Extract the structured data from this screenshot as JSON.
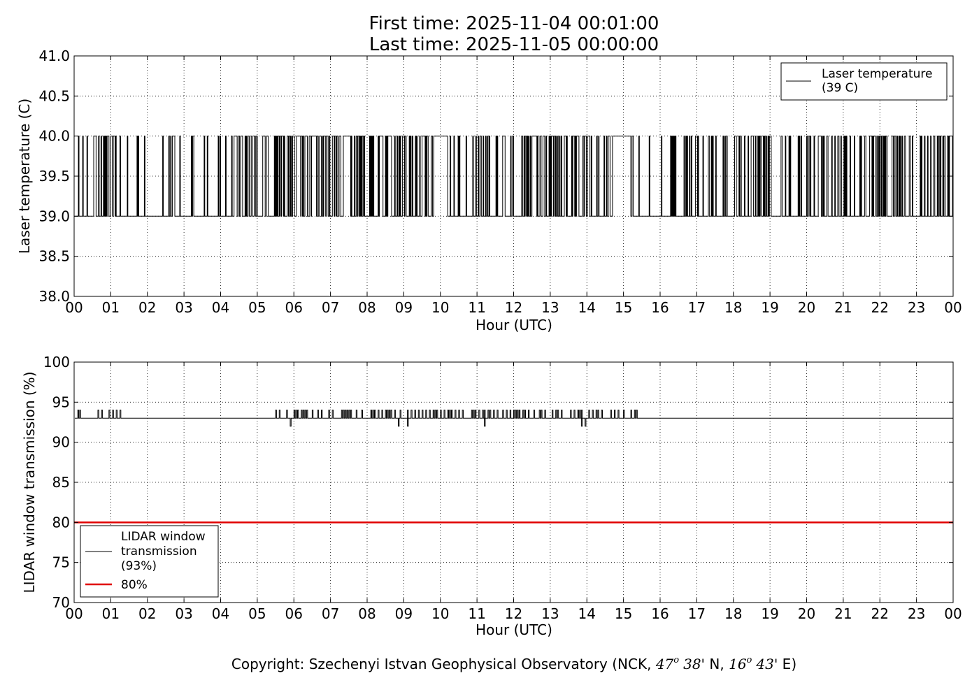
{
  "title": {
    "line1": "First time: 2025-11-04 00:01:00",
    "line2": "Last time: 2025-11-05 00:00:00"
  },
  "copyright": {
    "prefix": "Copyright: Szechenyi Istvan Geophysical Observatory (NCK, ",
    "lat_deg": "47",
    "deg_sym": "o",
    "lat_min": "38'",
    "lat_dir": " N, ",
    "lon_deg": "16",
    "lon_min": "43'",
    "lon_dir": " E)"
  },
  "chart_data": [
    {
      "type": "line",
      "ylabel": "Laser temperature (C)",
      "xlabel": "Hour (UTC)",
      "xlim": [
        0,
        24
      ],
      "ylim": [
        38.0,
        41.0
      ],
      "x_tick_labels": [
        "00",
        "01",
        "02",
        "03",
        "04",
        "05",
        "06",
        "07",
        "08",
        "09",
        "10",
        "11",
        "12",
        "13",
        "14",
        "15",
        "16",
        "17",
        "18",
        "19",
        "20",
        "21",
        "22",
        "23",
        "00"
      ],
      "y_ticks": [
        38.0,
        38.5,
        39.0,
        39.5,
        40.0,
        40.5,
        41.0
      ],
      "y_tick_labels": [
        "38.0",
        "38.5",
        "39.0",
        "39.5",
        "40.0",
        "40.5",
        "41.0"
      ],
      "grid": true,
      "legend": {
        "placement": "top-right",
        "lines": [
          "Laser temperature",
          "(39 C)"
        ]
      },
      "series": [
        {
          "name": "Laser temperature (39 C)",
          "color": "#000000",
          "baseline": 39.0,
          "spike_value": 40.0,
          "spike_density": [
            [
              0.0,
              0.5,
              0.35
            ],
            [
              0.5,
              1.3,
              0.75
            ],
            [
              1.3,
              2.0,
              0.25
            ],
            [
              2.0,
              2.3,
              0.0
            ],
            [
              2.3,
              3.6,
              0.35
            ],
            [
              3.6,
              4.3,
              0.25
            ],
            [
              4.3,
              5.5,
              0.8
            ],
            [
              5.5,
              7.4,
              0.95
            ],
            [
              7.4,
              7.7,
              0.5
            ],
            [
              7.7,
              10.0,
              0.7
            ],
            [
              10.0,
              12.0,
              0.5
            ],
            [
              12.0,
              14.1,
              0.7
            ],
            [
              14.1,
              15.3,
              0.45
            ],
            [
              15.3,
              16.2,
              0.05
            ],
            [
              16.2,
              19.0,
              0.55
            ],
            [
              19.0,
              24.0,
              0.45
            ]
          ],
          "plateaus": [
            [
              7.35,
              7.55
            ],
            [
              9.85,
              10.2
            ],
            [
              14.7,
              15.2
            ],
            [
              12.5,
              12.6
            ]
          ]
        }
      ]
    },
    {
      "type": "line",
      "ylabel": "LIDAR window transmission (%)",
      "xlabel": "Hour (UTC)",
      "xlim": [
        0,
        24
      ],
      "ylim": [
        70,
        100
      ],
      "x_tick_labels": [
        "00",
        "01",
        "02",
        "03",
        "04",
        "05",
        "06",
        "07",
        "08",
        "09",
        "10",
        "11",
        "12",
        "13",
        "14",
        "15",
        "16",
        "17",
        "18",
        "19",
        "20",
        "21",
        "22",
        "23",
        "00"
      ],
      "y_ticks": [
        70,
        75,
        80,
        85,
        90,
        95,
        100
      ],
      "y_tick_labels": [
        "70",
        "75",
        "80",
        "85",
        "90",
        "95",
        "100"
      ],
      "grid": true,
      "legend": {
        "placement": "lower-left",
        "lines": [
          "LIDAR window",
          "transmission",
          "(93%)"
        ],
        "threshold_label": "80%"
      },
      "series": [
        {
          "name": "LIDAR window transmission (93%)",
          "color": "#000000",
          "baseline": 93,
          "up_spikes": [
            0.1,
            0.15,
            0.65,
            0.75,
            0.95,
            1.05,
            1.15,
            1.25,
            5.5,
            5.6,
            5.8,
            6.0,
            6.05,
            6.1,
            6.2,
            6.25,
            6.3,
            6.35,
            6.5,
            6.65,
            6.75,
            6.95,
            7.05,
            7.3,
            7.35,
            7.4,
            7.45,
            7.5,
            7.55,
            7.7,
            7.85,
            8.1,
            8.15,
            8.2,
            8.3,
            8.4,
            8.5,
            8.55,
            8.6,
            8.65,
            8.75,
            8.9,
            9.1,
            9.2,
            9.3,
            9.4,
            9.5,
            9.6,
            9.7,
            9.8,
            9.85,
            9.9,
            10.0,
            10.1,
            10.2,
            10.25,
            10.3,
            10.4,
            10.5,
            10.6,
            10.85,
            10.9,
            10.95,
            11.05,
            11.15,
            11.2,
            11.3,
            11.35,
            11.45,
            11.55,
            11.7,
            11.8,
            11.9,
            12.0,
            12.05,
            12.1,
            12.15,
            12.25,
            12.3,
            12.4,
            12.55,
            12.7,
            12.75,
            12.85,
            13.05,
            13.15,
            13.2,
            13.3,
            13.55,
            13.65,
            13.75,
            13.8,
            13.85,
            14.05,
            14.15,
            14.25,
            14.3,
            14.4,
            14.65,
            14.75,
            14.85,
            15.0,
            15.2,
            15.3,
            15.35
          ],
          "down_spikes": [
            5.9,
            8.85,
            9.1,
            11.2,
            13.85,
            13.95
          ]
        },
        {
          "name": "80%",
          "color": "#e00000",
          "value": 80
        }
      ]
    }
  ]
}
